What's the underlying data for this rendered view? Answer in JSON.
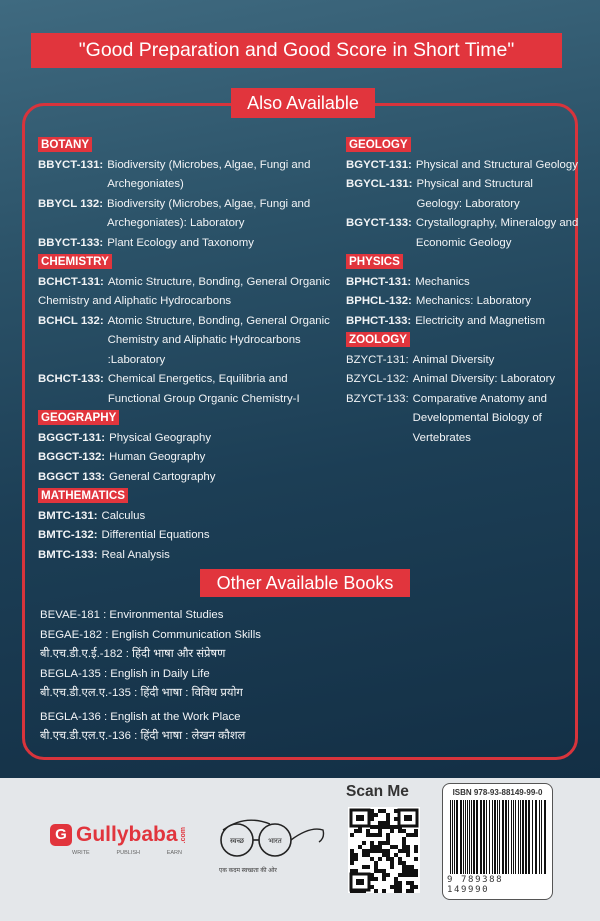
{
  "banner": "\"Good Preparation and Good Score in Short Time\"",
  "also_available": {
    "title": "Also Available",
    "left": [
      {
        "category": "BOTANY",
        "items": [
          {
            "code": "BBYCT-131:",
            "title": "Biodiversity (Microbes, Algae, Fungi and Archegoniates)"
          },
          {
            "code": "BBYCL 132:",
            "title": "Biodiversity (Microbes, Algae, Fungi and Archegoniates): Laboratory"
          },
          {
            "code": "BBYCT-133:",
            "title": "Plant Ecology and Taxonomy"
          }
        ]
      },
      {
        "category": "CHEMISTRY",
        "items": [
          {
            "code": "BCHCT-131:",
            "title": "Atomic Structure, Bonding, General Organic Chemistry and Aliphatic Hydrocarbons"
          },
          {
            "code": "BCHCL 132:",
            "title": "Atomic Structure, Bonding, General Organic Chemistry and Aliphatic Hydrocarbons :Laboratory"
          },
          {
            "code": "BCHCT-133:",
            "title": "Chemical Energetics, Equilibria and Functional Group Organic Chemistry-I"
          }
        ]
      },
      {
        "category": "GEOGRAPHY",
        "items": [
          {
            "code": "BGGCT-131:",
            "title": "Physical Geography"
          },
          {
            "code": "BGGCT-132:",
            "title": "Human Geography"
          },
          {
            "code": "BGGCT 133:",
            "title": "General Cartography"
          }
        ]
      },
      {
        "category": "MATHEMATICS",
        "items": [
          {
            "code": "BMTC-131:",
            "title": "Calculus"
          },
          {
            "code": "BMTC-132:",
            "title": "Differential Equations"
          },
          {
            "code": "BMTC-133:",
            "title": "Real Analysis"
          }
        ]
      }
    ],
    "right": [
      {
        "category": "GEOLOGY",
        "items": [
          {
            "code": "BGYCT-131:",
            "title": "Physical and Structural Geology"
          },
          {
            "code": "BGYCL-131:",
            "title": "Physical and Structural Geology: Laboratory"
          },
          {
            "code": "BGYCT-133:",
            "title": "Crystallography, Mineralogy and Economic Geology"
          }
        ]
      },
      {
        "category": "PHYSICS",
        "items": [
          {
            "code": "BPHCT-131:",
            "title": "Mechanics"
          },
          {
            "code": "BPHCL-132:",
            "title": "Mechanics: Laboratory"
          },
          {
            "code": "BPHCT-133:",
            "title": "Electricity and Magnetism"
          }
        ]
      },
      {
        "category": "ZOOLOGY",
        "items": [
          {
            "code": "BZYCT-131:",
            "title": "Animal Diversity"
          },
          {
            "code": "BZYCL-132:",
            "title": "Animal Diversity: Laboratory"
          },
          {
            "code": "BZYCT-133:",
            "title": "Comparative Anatomy and Developmental  Biology of Vertebrates"
          }
        ]
      }
    ]
  },
  "other_books": {
    "title": "Other Available Books",
    "items": [
      "BEVAE-181 : Environmental Studies",
      "BEGAE-182 : English Communication Skills",
      "बी.एच.डी.ए.ई.-182 : हिंदी भाषा और संप्रेषण",
      "BEGLA-135 : English in Daily Life",
      "बी.एच.डी.एल.ए.-135 : हिंदी भाषा : विविध प्रयोग",
      "BEGLA-136 : English at the Work Place",
      "बी.एच.डी.एल.ए.-136 :  हिंदी भाषा : लेखन कौशल"
    ]
  },
  "footer": {
    "publisher": {
      "name": "Gullybaba",
      "suffix": ".com",
      "tagline": [
        "WRITE",
        "PUBLISH",
        "EARN"
      ]
    },
    "swachh_bharat": {
      "left": "स्वच्छ",
      "right": "भारत",
      "caption": "एक कदम स्वच्छता की ओर"
    },
    "scan_label": "Scan Me",
    "isbn": "ISBN 978-93-88149-99-0",
    "barcode_number": "9 789388 149990"
  },
  "colors": {
    "accent": "#e1353d",
    "background": "#1c3e55",
    "footer": "#e4e7ea"
  }
}
